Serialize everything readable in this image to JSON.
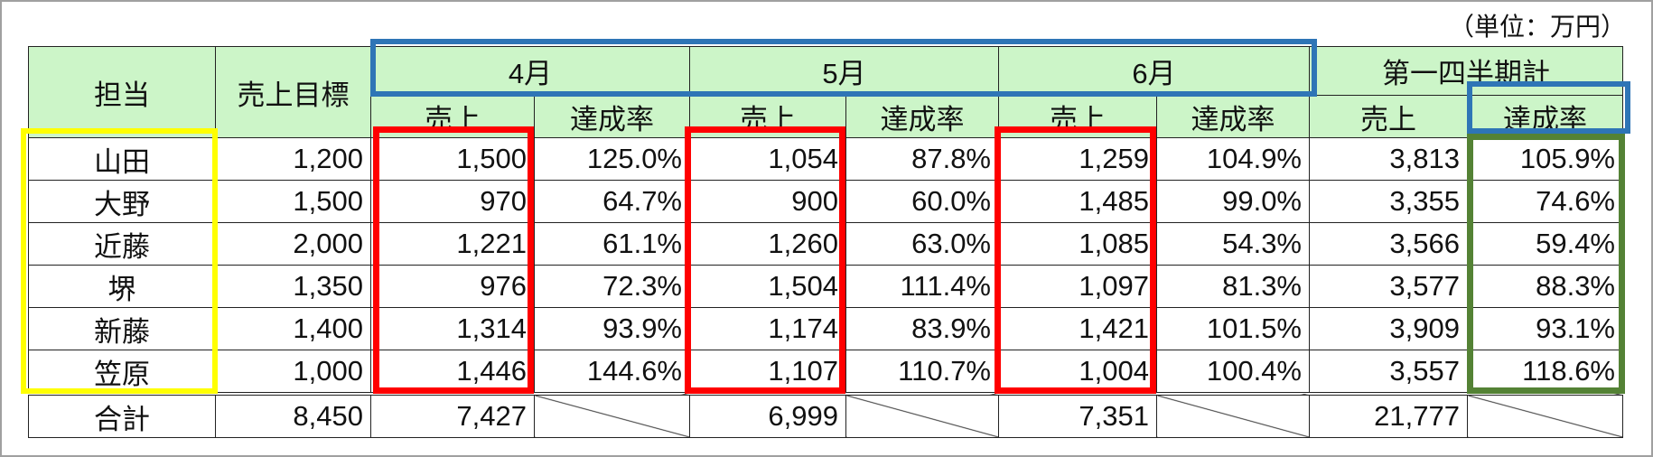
{
  "unit_label": "（単位：万円）",
  "headers": {
    "person": "担当",
    "target": "売上目標",
    "months": [
      "4月",
      "5月",
      "6月"
    ],
    "quarter": "第一四半期計",
    "sales": "売上",
    "rate": "達成率"
  },
  "rows": [
    {
      "name": "山田",
      "target": "1,200",
      "m": [
        [
          "1,500",
          "125.0%"
        ],
        [
          "1,054",
          "87.8%"
        ],
        [
          "1,259",
          "104.9%"
        ]
      ],
      "q": [
        "3,813",
        "105.9%"
      ]
    },
    {
      "name": "大野",
      "target": "1,500",
      "m": [
        [
          "970",
          "64.7%"
        ],
        [
          "900",
          "60.0%"
        ],
        [
          "1,485",
          "99.0%"
        ]
      ],
      "q": [
        "3,355",
        "74.6%"
      ]
    },
    {
      "name": "近藤",
      "target": "2,000",
      "m": [
        [
          "1,221",
          "61.1%"
        ],
        [
          "1,260",
          "63.0%"
        ],
        [
          "1,085",
          "54.3%"
        ]
      ],
      "q": [
        "3,566",
        "59.4%"
      ]
    },
    {
      "name": "堺",
      "target": "1,350",
      "m": [
        [
          "976",
          "72.3%"
        ],
        [
          "1,504",
          "111.4%"
        ],
        [
          "1,097",
          "81.3%"
        ]
      ],
      "q": [
        "3,577",
        "88.3%"
      ]
    },
    {
      "name": "新藤",
      "target": "1,400",
      "m": [
        [
          "1,314",
          "93.9%"
        ],
        [
          "1,174",
          "83.9%"
        ],
        [
          "1,421",
          "101.5%"
        ]
      ],
      "q": [
        "3,909",
        "93.1%"
      ]
    },
    {
      "name": "笠原",
      "target": "1,000",
      "m": [
        [
          "1,446",
          "144.6%"
        ],
        [
          "1,107",
          "110.7%"
        ],
        [
          "1,004",
          "100.4%"
        ]
      ],
      "q": [
        "3,557",
        "118.6%"
      ]
    }
  ],
  "total": {
    "name": "合計",
    "target": "8,450",
    "m": [
      "7,427",
      "6,999",
      "7,351"
    ],
    "q": "21,777"
  },
  "highlight_colors": {
    "blue": "#2e75b6",
    "yellow": "#ffff00",
    "red": "#ff0000",
    "green": "#548235"
  },
  "header_bg": "#ccf5c8"
}
